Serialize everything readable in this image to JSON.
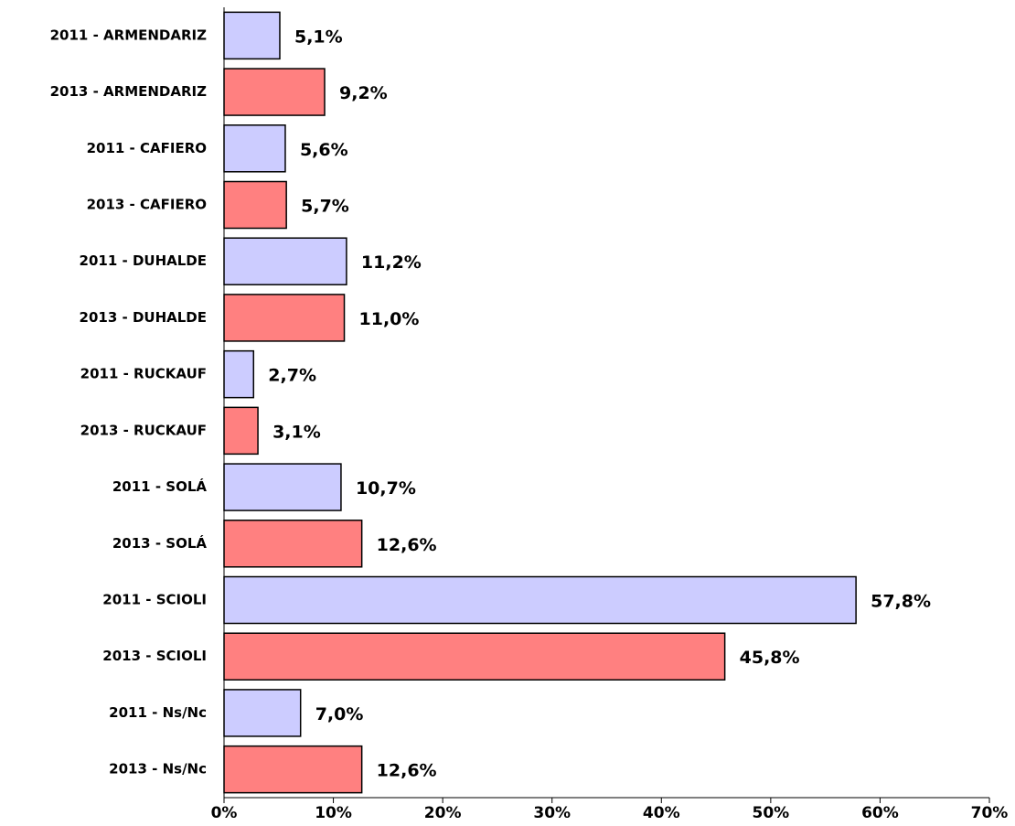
{
  "chart_data": {
    "type": "hbar",
    "categories": [
      "2011 - ARMENDARIZ",
      "2013 - ARMENDARIZ",
      "2011 - CAFIERO",
      "2013 - CAFIERO",
      "2011 - DUHALDE",
      "2013 - DUHALDE",
      "2011 - RUCKAUF",
      "2013 - RUCKAUF",
      "2011 - SOLÁ",
      "2013 - SOLÁ",
      "2011 - SCIOLI",
      "2013 - SCIOLI",
      "2011 - Ns/Nc",
      "2013 - Ns/Nc"
    ],
    "values": [
      5.1,
      9.2,
      5.6,
      5.7,
      11.2,
      11.0,
      2.7,
      3.1,
      10.7,
      12.6,
      57.8,
      45.8,
      7.0,
      12.6
    ],
    "value_labels": [
      "5,1%",
      "9,2%",
      "5,6%",
      "5,7%",
      "11,2%",
      "11,0%",
      "2,7%",
      "3,1%",
      "10,7%",
      "12,6%",
      "57,8%",
      "45,8%",
      "7,0%",
      "12,6%"
    ],
    "colors": [
      "#ccccff",
      "#ff8080",
      "#ccccff",
      "#ff8080",
      "#ccccff",
      "#ff8080",
      "#ccccff",
      "#ff8080",
      "#ccccff",
      "#ff8080",
      "#ccccff",
      "#ff8080",
      "#ccccff",
      "#ff8080"
    ],
    "xlim": [
      0,
      70
    ],
    "xticks": [
      {
        "value": 0,
        "label": "0%"
      },
      {
        "value": 10,
        "label": "10%"
      },
      {
        "value": 20,
        "label": "20%"
      },
      {
        "value": 30,
        "label": "30%"
      },
      {
        "value": 40,
        "label": "40%"
      },
      {
        "value": 50,
        "label": "50%"
      },
      {
        "value": 60,
        "label": "60%"
      },
      {
        "value": 70,
        "label": "70%"
      }
    ],
    "grid": false
  }
}
